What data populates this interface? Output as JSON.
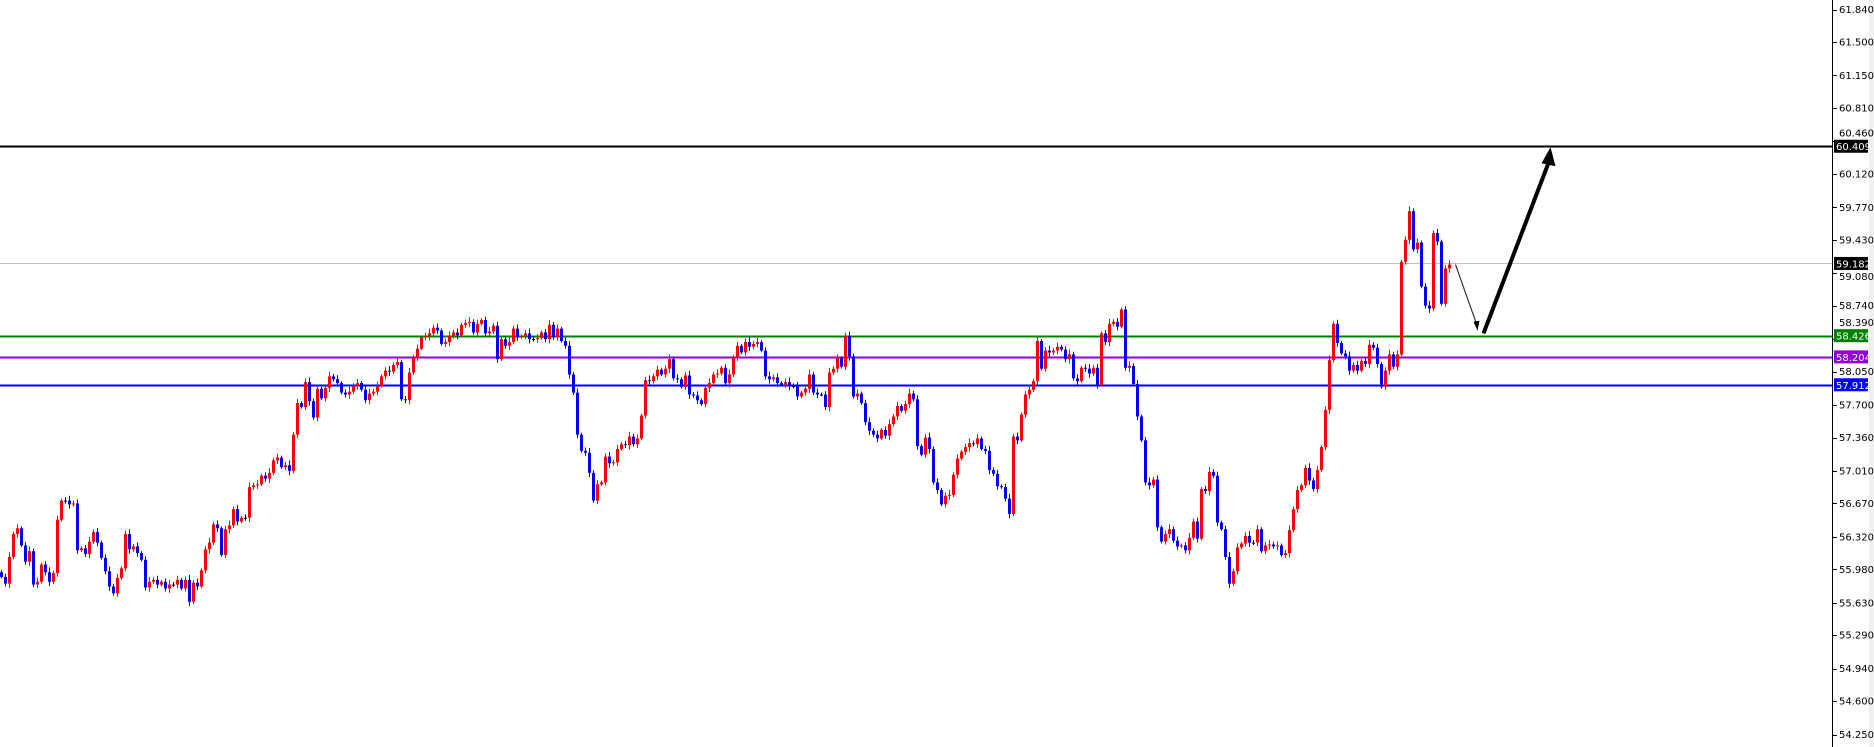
{
  "chart_data": {
    "type": "candlestick",
    "title": "",
    "xlabel": "",
    "ylabel": "",
    "ylim": [
      54.12,
      61.94
    ],
    "grid": false,
    "legend": "none",
    "colors": {
      "up": "#ff0000",
      "down": "#0000ff",
      "flat": "#000000",
      "background": "#ffffff",
      "axis": "#000000"
    },
    "y_ticks": [
      "61.840",
      "61.500",
      "61.150",
      "60.810",
      "60.460",
      "60.120",
      "59.770",
      "59.430",
      "59.080",
      "58.740",
      "58.390",
      "58.050",
      "57.700",
      "57.360",
      "57.010",
      "56.670",
      "56.320",
      "55.980",
      "55.630",
      "55.290",
      "54.940",
      "54.600",
      "54.250"
    ],
    "first_open": 55.95,
    "closes": [
      55.9,
      55.83,
      56.11,
      56.35,
      56.41,
      56.23,
      56.06,
      56.17,
      55.82,
      55.85,
      56.03,
      55.95,
      55.85,
      55.94,
      56.5,
      56.7,
      56.7,
      56.66,
      56.67,
      56.18,
      56.2,
      56.14,
      56.27,
      56.37,
      56.26,
      56.1,
      55.96,
      55.8,
      55.73,
      55.89,
      55.99,
      56.35,
      56.19,
      56.22,
      56.15,
      56.08,
      55.79,
      55.85,
      55.87,
      55.82,
      55.85,
      55.78,
      55.82,
      55.82,
      55.87,
      55.78,
      55.87,
      55.64,
      55.84,
      55.8,
      55.97,
      56.19,
      56.26,
      56.45,
      56.41,
      56.13,
      56.4,
      56.44,
      56.61,
      56.48,
      56.52,
      56.52,
      56.84,
      56.86,
      56.87,
      56.96,
      56.93,
      56.99,
      57.12,
      57.15,
      57.05,
      57.07,
      57.01,
      57.39,
      57.72,
      57.68,
      57.94,
      57.74,
      57.57,
      57.87,
      57.77,
      57.88,
      58.0,
      57.97,
      57.93,
      57.83,
      57.81,
      57.84,
      57.9,
      57.93,
      57.86,
      57.75,
      57.82,
      57.84,
      57.9,
      58.0,
      58.06,
      58.05,
      58.12,
      58.15,
      57.76,
      57.75,
      58.04,
      58.2,
      58.29,
      58.41,
      58.42,
      58.45,
      58.51,
      58.48,
      58.34,
      58.36,
      58.42,
      58.46,
      58.43,
      58.54,
      58.56,
      58.57,
      58.46,
      58.55,
      58.59,
      58.45,
      58.47,
      58.53,
      58.18,
      58.39,
      58.32,
      58.36,
      58.5,
      58.41,
      58.42,
      58.45,
      58.39,
      58.39,
      58.4,
      58.46,
      58.39,
      58.54,
      58.41,
      58.5,
      58.37,
      58.32,
      58.02,
      57.83,
      57.39,
      57.22,
      57.2,
      56.99,
      56.7,
      56.87,
      56.89,
      57.16,
      57.09,
      57.1,
      57.24,
      57.29,
      57.28,
      57.37,
      57.29,
      57.35,
      57.59,
      57.96,
      57.95,
      58.0,
      58.07,
      58.02,
      58.08,
      58.18,
      57.98,
      57.97,
      57.89,
      58.01,
      57.81,
      57.8,
      57.75,
      57.71,
      57.88,
      57.93,
      58.02,
      58.03,
      58.09,
      57.93,
      58.02,
      58.2,
      58.32,
      58.25,
      58.36,
      58.31,
      58.34,
      58.36,
      58.27,
      58.0,
      57.97,
      57.99,
      57.93,
      57.91,
      57.94,
      57.9,
      57.9,
      57.79,
      57.83,
      57.87,
      58.02,
      57.83,
      57.81,
      57.81,
      57.68,
      58.04,
      58.08,
      58.19,
      58.1,
      58.42,
      58.21,
      57.79,
      57.82,
      57.72,
      57.52,
      57.43,
      57.39,
      57.35,
      57.44,
      57.38,
      57.5,
      57.58,
      57.69,
      57.64,
      57.71,
      57.82,
      57.76,
      57.27,
      57.18,
      57.36,
      57.24,
      56.89,
      56.81,
      56.66,
      56.75,
      56.76,
      56.97,
      57.14,
      57.21,
      57.26,
      57.3,
      57.29,
      57.35,
      57.24,
      57.22,
      57.02,
      56.98,
      56.85,
      56.84,
      56.72,
      56.56,
      57.37,
      57.33,
      57.6,
      57.81,
      57.86,
      57.95,
      58.37,
      58.08,
      58.27,
      58.25,
      58.27,
      58.31,
      58.28,
      58.18,
      58.23,
      57.98,
      57.95,
      58.09,
      58.08,
      58.03,
      58.09,
      57.91,
      58.45,
      58.36,
      58.55,
      58.57,
      58.52,
      58.7,
      58.09,
      58.11,
      57.92,
      57.58,
      57.33,
      56.89,
      56.86,
      56.92,
      56.42,
      56.27,
      56.35,
      56.4,
      56.28,
      56.22,
      56.23,
      56.18,
      56.31,
      56.48,
      56.3,
      56.82,
      56.8,
      57.0,
      56.96,
      56.47,
      56.4,
      56.11,
      55.83,
      55.96,
      56.21,
      56.25,
      56.33,
      56.26,
      56.26,
      56.4,
      56.17,
      56.23,
      56.24,
      56.22,
      56.23,
      56.13,
      56.15,
      56.39,
      56.61,
      56.81,
      56.86,
      57.04,
      56.91,
      56.82,
      57.02,
      57.26,
      57.65,
      58.17,
      58.55,
      58.35,
      58.24,
      58.21,
      58.06,
      58.12,
      58.06,
      58.16,
      58.13,
      58.33,
      58.3,
      58.13,
      57.89,
      58.06,
      58.23,
      58.1,
      58.23,
      59.2,
      59.43,
      59.73,
      59.33,
      59.4,
      58.94,
      58.74,
      58.71,
      59.5,
      59.41,
      58.76,
      59.13,
      59.17
    ],
    "horizontal_lines": [
      {
        "value": 60.409,
        "label": "60.409",
        "color": "#000000"
      },
      {
        "value": 59.182,
        "label": "59.182",
        "color": "#c0c0c0",
        "tag_color": "#000000"
      },
      {
        "value": 58.426,
        "label": "58.426",
        "color": "#008000"
      },
      {
        "value": 58.204,
        "label": "58.204",
        "color": "#9400d3"
      },
      {
        "value": 57.912,
        "label": "57.912",
        "color": "#0000ff"
      }
    ],
    "projection": {
      "down_leg": {
        "from_price": 59.17,
        "to_price": 58.52
      },
      "up_leg": {
        "from_price": 58.45,
        "to_price": 60.409
      }
    }
  }
}
